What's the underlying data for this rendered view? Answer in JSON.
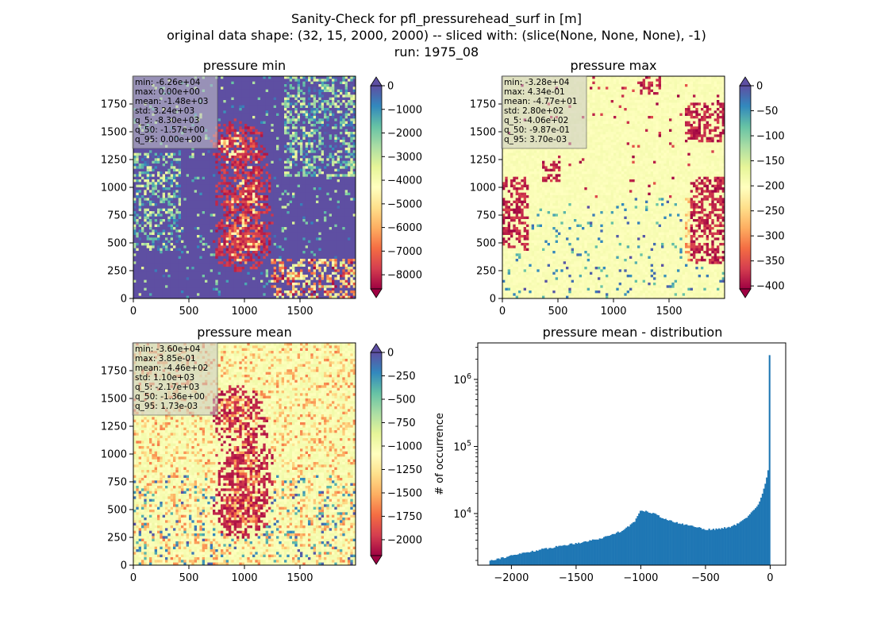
{
  "figure": {
    "title_lines": [
      "Sanity-Check for pfl_pressurehead_surf in [m]",
      "original data shape: (32, 15, 2000, 2000) -- sliced with: (slice(None, None, None), -1)",
      "run: 1975_08"
    ]
  },
  "colormap": {
    "name": "Spectral",
    "stops": [
      "#9e0142",
      "#d53e4f",
      "#f46d43",
      "#fdae61",
      "#fee08b",
      "#ffffbf",
      "#e6f598",
      "#abdda4",
      "#66c2a5",
      "#3288bd",
      "#5e4fa2"
    ]
  },
  "chart_data": [
    {
      "type": "heatmap",
      "id": "pressure-min",
      "title": "pressure min",
      "xlim": [
        0,
        2000
      ],
      "ylim": [
        0,
        2000
      ],
      "x_ticks": [
        0,
        500,
        1000,
        1500
      ],
      "y_ticks": [
        0,
        250,
        500,
        750,
        1000,
        1250,
        1500,
        1750
      ],
      "colorbar": {
        "min": -8600,
        "max": 0,
        "ticks": [
          0,
          -1000,
          -2000,
          -3000,
          -4000,
          -5000,
          -6000,
          -7000,
          -8000
        ],
        "extend": "both"
      },
      "stats": [
        "min: -6.26e+04",
        "max: 0.00e+00",
        "mean: -1.48e+03",
        "std: 3.24e+03",
        "q_5: -8.30e+03",
        "q_50: -1.57e+00",
        "q_95: 0.00e+00"
      ]
    },
    {
      "type": "heatmap",
      "id": "pressure-max",
      "title": "pressure max",
      "xlim": [
        0,
        2000
      ],
      "ylim": [
        0,
        2000
      ],
      "x_ticks": [
        0,
        500,
        1000,
        1500
      ],
      "y_ticks": [
        0,
        250,
        500,
        750,
        1000,
        1250,
        1500,
        1750
      ],
      "colorbar": {
        "min": -406,
        "max": 0,
        "ticks": [
          0,
          -50,
          -100,
          -150,
          -200,
          -250,
          -300,
          -350,
          -400
        ],
        "extend": "both"
      },
      "stats": [
        "min: -3.28e+04",
        "max: 4.34e-01",
        "mean: -4.77e+01",
        "std: 2.80e+02",
        "q_5: -4.06e+02",
        "q_50: -9.87e-01",
        "q_95: 3.70e-03"
      ]
    },
    {
      "type": "heatmap",
      "id": "pressure-mean",
      "title": "pressure mean",
      "xlim": [
        0,
        2000
      ],
      "ylim": [
        0,
        2000
      ],
      "x_ticks": [
        0,
        500,
        1000,
        1500
      ],
      "y_ticks": [
        0,
        250,
        500,
        750,
        1000,
        1250,
        1500,
        1750
      ],
      "colorbar": {
        "min": -2170,
        "max": 0,
        "ticks": [
          0,
          -250,
          -500,
          -750,
          -1000,
          -1250,
          -1500,
          -1750,
          -2000
        ],
        "extend": "both"
      },
      "stats": [
        "min: -3.60e+04",
        "max: 3.85e-01",
        "mean: -4.46e+02",
        "std: 1.10e+03",
        "q_5: -2.17e+03",
        "q_50: -1.36e+00",
        "q_95: 1.73e-03"
      ]
    },
    {
      "type": "bar",
      "id": "pressure-mean-distribution",
      "title": "pressure mean - distribution",
      "ylabel": "# of occurrence",
      "yscale": "log",
      "xlim": [
        -2260,
        120
      ],
      "ylim": [
        1700,
        3500000
      ],
      "x_ticks": [
        -2000,
        -1500,
        -1000,
        -500,
        0
      ],
      "y_major_ticks": [
        10000,
        100000,
        1000000
      ],
      "bar_color": "#1f77b4",
      "bins": {
        "x": [
          -2170,
          -2040,
          -1900,
          -1750,
          -1600,
          -1450,
          -1300,
          -1150,
          -1050,
          -1000,
          -990,
          -950,
          -900,
          -850,
          -800,
          -750,
          -700,
          -650,
          -600,
          -550,
          -500,
          -450,
          -400,
          -350,
          -300,
          -250,
          -200,
          -150,
          -100,
          -70,
          -50,
          -30,
          -20,
          -10,
          -5,
          0
        ],
        "y": [
          2000,
          2250,
          2600,
          2950,
          3350,
          3750,
          4300,
          5500,
          7400,
          11500,
          11000,
          10800,
          10000,
          9000,
          8100,
          7500,
          7100,
          6800,
          6500,
          6200,
          5800,
          5800,
          5900,
          6100,
          6400,
          7000,
          8200,
          10000,
          13000,
          17000,
          23000,
          32000,
          45000,
          45000,
          80000,
          2300000
        ]
      }
    }
  ]
}
